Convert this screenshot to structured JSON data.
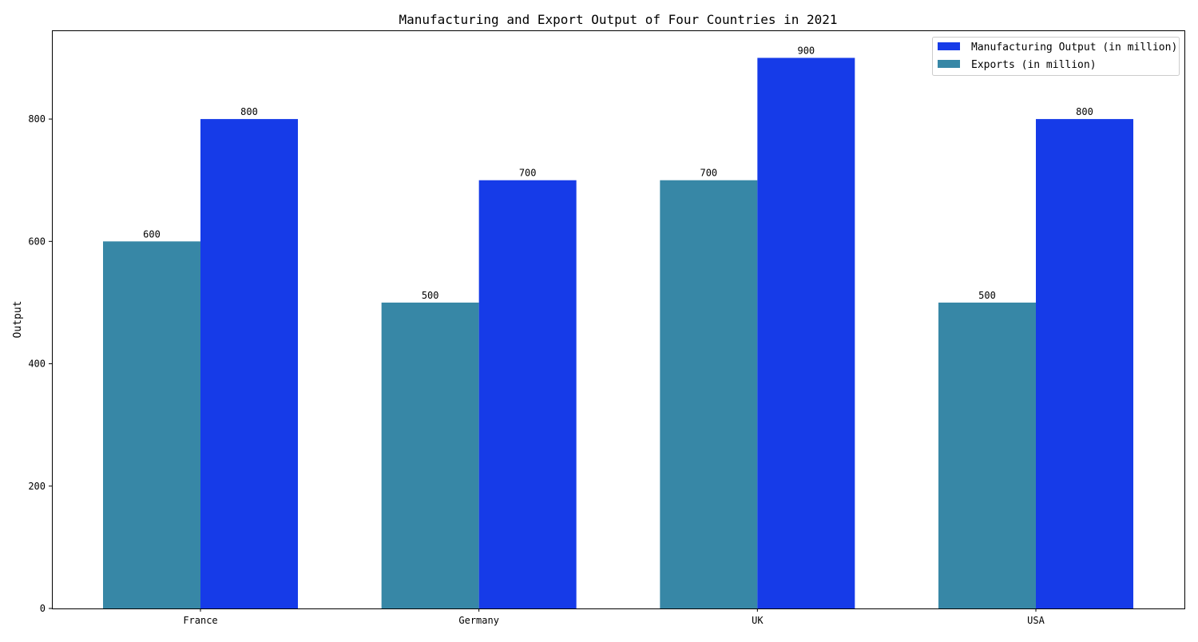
{
  "chart_data": {
    "type": "bar",
    "title": "Manufacturing and Export Output of Four Countries in 2021",
    "xlabel": "",
    "ylabel": "Output",
    "categories": [
      "France",
      "Germany",
      "UK",
      "USA"
    ],
    "ylim": [
      0,
      945
    ],
    "yticks": [
      0,
      200,
      400,
      600,
      800
    ],
    "grid": false,
    "legend_position": "top-right",
    "series": [
      {
        "name": "Exports (in million)",
        "values": [
          600,
          500,
          700,
          500
        ],
        "color": "#3787a6"
      },
      {
        "name": "Manufacturing Output (in million)",
        "values": [
          800,
          700,
          900,
          800
        ],
        "color": "#163be8"
      }
    ],
    "legend_order": [
      "Manufacturing Output (in million)",
      "Exports (in million)"
    ]
  }
}
